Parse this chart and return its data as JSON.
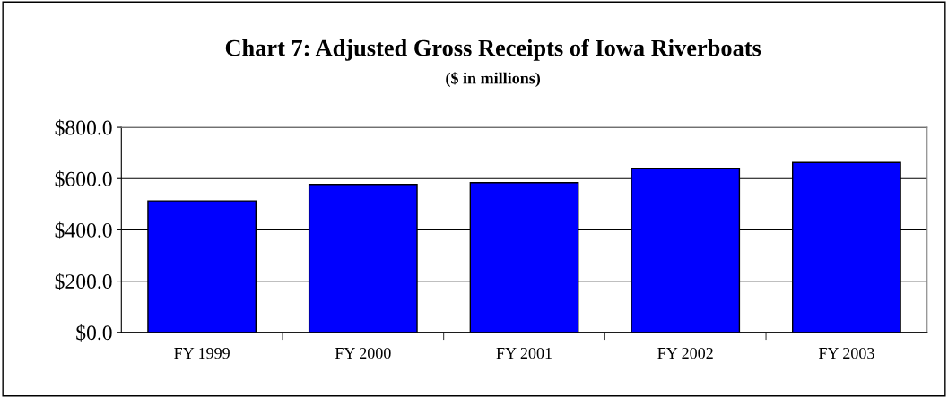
{
  "chart_data": {
    "type": "bar",
    "title": "Chart 7: Adjusted Gross Receipts of Iowa Riverboats",
    "subtitle": "($ in millions)",
    "categories": [
      "FY 1999",
      "FY 2000",
      "FY 2001",
      "FY 2002",
      "FY 2003"
    ],
    "values": [
      513,
      577,
      584,
      640,
      663
    ],
    "color": "#0000ff",
    "ylim": [
      0,
      800
    ],
    "yticks": [
      {
        "value": 0,
        "label": "$0.0"
      },
      {
        "value": 200,
        "label": "$200.0"
      },
      {
        "value": 400,
        "label": "$400.0"
      },
      {
        "value": 600,
        "label": "$600.0"
      },
      {
        "value": 800,
        "label": "$800.0"
      }
    ],
    "grid": "y"
  }
}
